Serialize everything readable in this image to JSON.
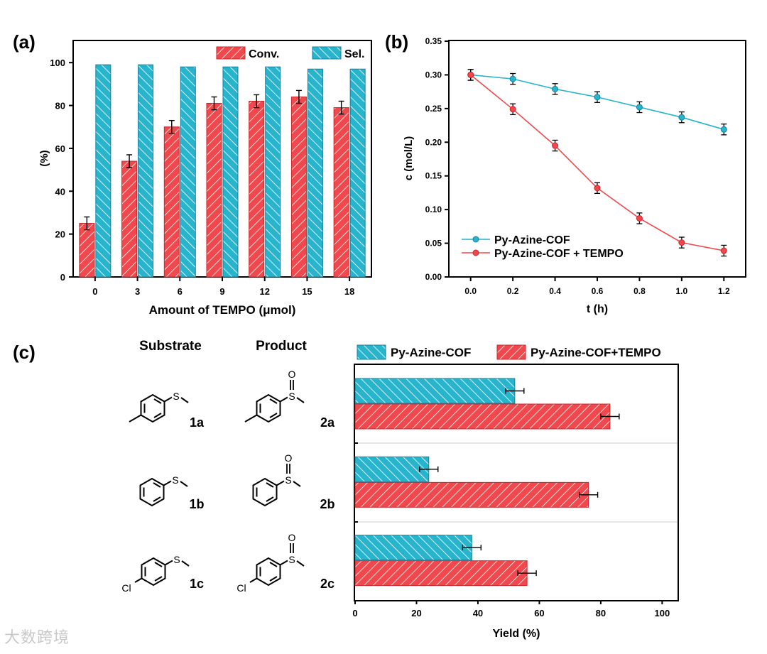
{
  "colors": {
    "red": "#f0484c",
    "red_dark": "#c8262b",
    "teal": "#27b4cc",
    "teal_dark": "#16809a",
    "axis": "#000000",
    "sep": "#cccccc"
  },
  "panel_labels": {
    "a": "(a)",
    "b": "(b)",
    "c": "(c)"
  },
  "watermark": "大数跨境",
  "chart_data": [
    {
      "id": "a",
      "type": "bar",
      "categories": [
        "0",
        "3",
        "6",
        "9",
        "12",
        "15",
        "18"
      ],
      "series": [
        {
          "name": "Conv.",
          "values": [
            25,
            54,
            70,
            81,
            82,
            84,
            79
          ],
          "errors": [
            3,
            3,
            3,
            3,
            3,
            3,
            3
          ]
        },
        {
          "name": "Sel.",
          "values": [
            99,
            99,
            98,
            98,
            98,
            97,
            97
          ]
        }
      ],
      "ylim": [
        0,
        110
      ],
      "yticks": [
        "0",
        "20",
        "40",
        "60",
        "80",
        "100"
      ],
      "xlabel": "Amount of TEMPO (μmol)",
      "ylabel": "(%)",
      "legend": [
        "Conv.",
        "Sel."
      ],
      "legend_position": "top-right"
    },
    {
      "id": "b",
      "type": "line",
      "x": [
        0.0,
        0.2,
        0.4,
        0.6,
        0.8,
        1.0,
        1.2
      ],
      "xticks": [
        "0.0",
        "0.2",
        "0.4",
        "0.6",
        "0.8",
        "1.0",
        "1.2"
      ],
      "series": [
        {
          "name": "Py-Azine-COF",
          "values": [
            0.3,
            0.294,
            0.279,
            0.267,
            0.252,
            0.237,
            0.219
          ],
          "errors": [
            0.008,
            0.008,
            0.008,
            0.008,
            0.008,
            0.008,
            0.008
          ]
        },
        {
          "name": "Py-Azine-COF + TEMPO",
          "values": [
            0.3,
            0.249,
            0.195,
            0.132,
            0.087,
            0.051,
            0.039
          ],
          "errors": [
            0.008,
            0.008,
            0.008,
            0.008,
            0.008,
            0.008,
            0.008
          ]
        }
      ],
      "xlim": [
        -0.1,
        1.3
      ],
      "ylim": [
        0.0,
        0.35
      ],
      "yticks": [
        "0.00",
        "0.05",
        "0.10",
        "0.15",
        "0.20",
        "0.25",
        "0.30",
        "0.35"
      ],
      "xlabel": "t (h)",
      "ylabel": "c (mol/L)",
      "legend_position": "bottom-left"
    },
    {
      "id": "c",
      "type": "bar",
      "orientation": "horizontal",
      "categories": [
        "2a",
        "2b",
        "2c"
      ],
      "series": [
        {
          "name": "Py-Azine-COF",
          "values": [
            52,
            24,
            38
          ],
          "errors": [
            3,
            3,
            3
          ]
        },
        {
          "name": "Py-Azine-COF+TEMPO",
          "values": [
            83,
            76,
            56
          ],
          "errors": [
            3,
            3,
            3
          ]
        }
      ],
      "xlim": [
        0,
        105
      ],
      "xticks": [
        "0",
        "20",
        "40",
        "60",
        "80",
        "100"
      ],
      "xlabel": "Yield (%)",
      "legend_position": "top",
      "table": {
        "headers": [
          "Substrate",
          "Product"
        ],
        "substrates": [
          "1a",
          "1b",
          "1c"
        ],
        "products": [
          "2a",
          "2b",
          "2c"
        ],
        "atoms": {
          "S": "S",
          "O": "O",
          "Cl": "Cl"
        }
      }
    }
  ]
}
